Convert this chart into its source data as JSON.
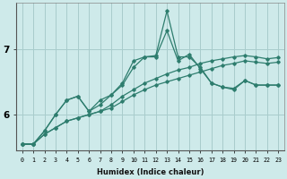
{
  "xlabel": "Humidex (Indice chaleur)",
  "ylabel": "",
  "bg_color": "#ceeaea",
  "grid_color": "#a8cccc",
  "line_color": "#2e7d6e",
  "marker_color": "#2e7d6e",
  "xlim": [
    -0.5,
    23.5
  ],
  "ylim": [
    5.45,
    7.7
  ],
  "yticks": [
    6,
    7
  ],
  "xticks": [
    0,
    1,
    2,
    3,
    4,
    5,
    6,
    7,
    8,
    9,
    10,
    11,
    12,
    13,
    14,
    15,
    16,
    17,
    18,
    19,
    20,
    21,
    22,
    23
  ],
  "series": [
    [
      5.55,
      5.55,
      5.7,
      5.8,
      5.9,
      5.95,
      6.0,
      6.05,
      6.1,
      6.2,
      6.3,
      6.38,
      6.45,
      6.5,
      6.55,
      6.6,
      6.65,
      6.7,
      6.75,
      6.78,
      6.82,
      6.8,
      6.78,
      6.8
    ],
    [
      5.55,
      5.55,
      5.7,
      5.8,
      5.9,
      5.95,
      6.0,
      6.05,
      6.15,
      6.28,
      6.38,
      6.48,
      6.55,
      6.62,
      6.68,
      6.72,
      6.78,
      6.82,
      6.85,
      6.88,
      6.9,
      6.88,
      6.85,
      6.87
    ],
    [
      5.55,
      5.55,
      5.75,
      6.0,
      6.22,
      6.28,
      6.05,
      6.15,
      6.3,
      6.45,
      6.72,
      6.88,
      6.9,
      7.58,
      6.88,
      6.88,
      6.72,
      6.48,
      6.42,
      6.38,
      6.52,
      6.45,
      6.45,
      6.45
    ],
    [
      5.55,
      5.55,
      5.75,
      6.0,
      6.22,
      6.28,
      6.05,
      6.22,
      6.3,
      6.48,
      6.82,
      6.88,
      6.88,
      7.28,
      6.82,
      6.92,
      6.7,
      6.48,
      6.42,
      6.4,
      6.52,
      6.45,
      6.45,
      6.45
    ]
  ]
}
